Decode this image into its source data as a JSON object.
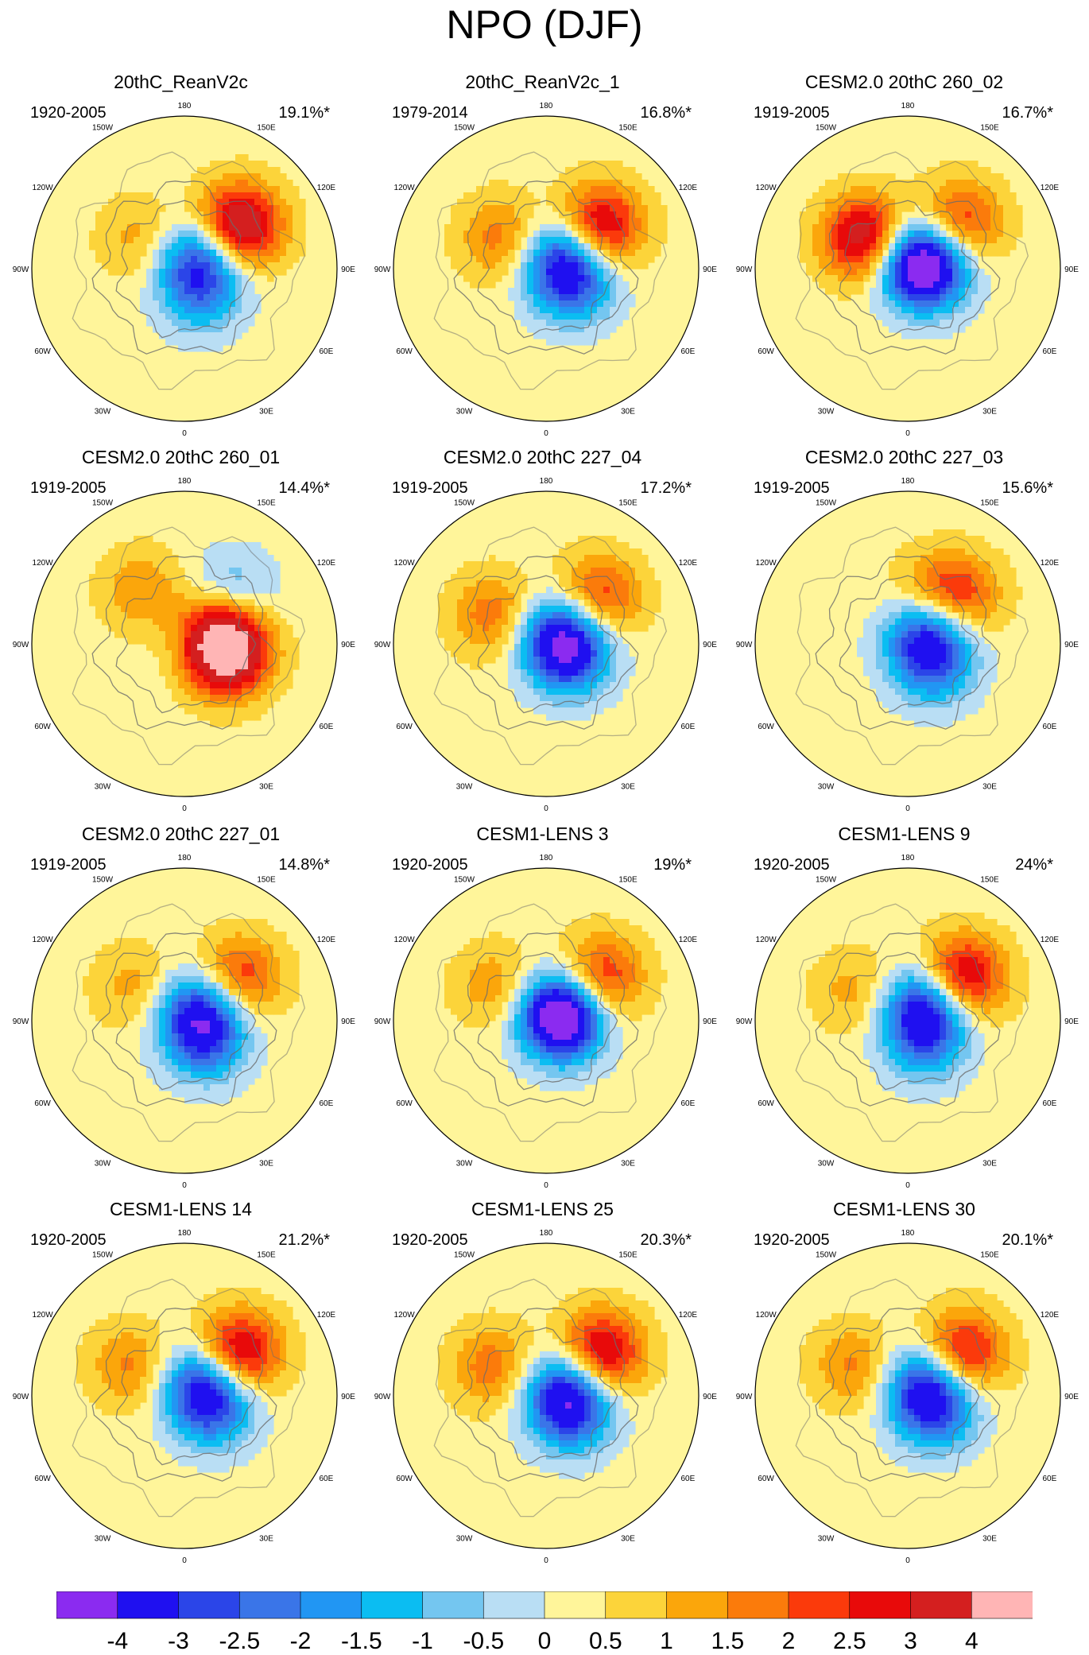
{
  "figure": {
    "title": "NPO (DJF)"
  },
  "lon_labels": [
    "180",
    "150E",
    "120E",
    "90E",
    "60E",
    "30E",
    "0",
    "30W",
    "60W",
    "90W",
    "120W",
    "150W"
  ],
  "panels": [
    {
      "title": "20thC_ReanV2c",
      "period": "1920-2005",
      "variance": "19.1%*",
      "pattern": {
        "pos": [
          [
            0.45,
            0.66,
            4.0
          ],
          [
            -0.35,
            -0.6,
            1.0
          ]
        ],
        "neg": [
          [
            0.12,
            0.55,
            3.0
          ],
          [
            0.2,
            -1.0,
            1.6
          ]
        ]
      }
    },
    {
      "title": "20thC_ReanV2c_1",
      "period": "1979-2014",
      "variance": "16.8%*",
      "pattern": {
        "pos": [
          [
            0.45,
            0.66,
            3.2
          ],
          [
            -0.35,
            -0.6,
            1.6
          ]
        ],
        "neg": [
          [
            0.12,
            0.55,
            3.0
          ],
          [
            0.22,
            -0.5,
            2.0
          ]
        ]
      }
    },
    {
      "title": "CESM2.0 20thC 260_02",
      "period": "1919-2005",
      "variance": "16.7%*",
      "pattern": {
        "pos": [
          [
            0.45,
            0.72,
            2.4
          ],
          [
            -0.35,
            -0.62,
            3.4
          ]
        ],
        "neg": [
          [
            0.1,
            0.4,
            3.6
          ],
          [
            0.12,
            0.0,
            2.4
          ]
        ]
      }
    },
    {
      "title": "CESM2.0 20thC 260_01",
      "period": "1919-2005",
      "variance": "14.4%*",
      "pattern": {
        "pos": [
          [
            0.28,
            -0.3,
            3.6
          ],
          [
            0.25,
            0.3,
            3.4
          ],
          [
            -0.45,
            -0.9,
            1.2
          ]
        ],
        "neg": [
          [
            0.45,
            0.8,
            1.6
          ],
          [
            0.1,
            -0.1,
            0.8
          ]
        ]
      }
    },
    {
      "title": "CESM2.0 20thC 227_04",
      "period": "1919-2005",
      "variance": "17.2%*",
      "pattern": {
        "pos": [
          [
            0.45,
            0.72,
            2.4
          ],
          [
            -0.4,
            -0.5,
            1.6
          ]
        ],
        "neg": [
          [
            0.12,
            0.45,
            3.4
          ],
          [
            0.18,
            -0.5,
            2.2
          ]
        ]
      }
    },
    {
      "title": "CESM2.0 20thC 227_03",
      "period": "1919-2005",
      "variance": "15.6%*",
      "pattern": {
        "pos": [
          [
            0.45,
            0.75,
            2.2
          ],
          [
            0.35,
            1.2,
            1.0
          ]
        ],
        "neg": [
          [
            0.15,
            0.5,
            3.2
          ],
          [
            0.22,
            -0.7,
            2.0
          ]
        ]
      }
    },
    {
      "title": "CESM2.0 20thC 227_01",
      "period": "1919-2005",
      "variance": "14.8%*",
      "pattern": {
        "pos": [
          [
            0.45,
            0.66,
            2.4
          ],
          [
            -0.4,
            -0.6,
            1.0
          ]
        ],
        "neg": [
          [
            0.12,
            0.5,
            3.4
          ],
          [
            0.2,
            -0.8,
            2.0
          ]
        ]
      }
    },
    {
      "title": "CESM1-LENS 3",
      "period": "1920-2005",
      "variance": "19%*",
      "pattern": {
        "pos": [
          [
            0.45,
            0.66,
            2.6
          ],
          [
            -0.4,
            -0.6,
            1.2
          ]
        ],
        "neg": [
          [
            0.12,
            0.45,
            3.4
          ],
          [
            0.1,
            0.0,
            2.6
          ]
        ]
      }
    },
    {
      "title": "CESM1-LENS 9",
      "period": "1920-2005",
      "variance": "24%*",
      "pattern": {
        "pos": [
          [
            0.45,
            0.66,
            3.4
          ],
          [
            -0.4,
            -0.5,
            1.0
          ]
        ],
        "neg": [
          [
            0.14,
            0.55,
            4.0
          ],
          [
            0.2,
            -1.0,
            1.4
          ]
        ]
      }
    },
    {
      "title": "CESM1-LENS 14",
      "period": "1920-2005",
      "variance": "21.2%*",
      "pattern": {
        "pos": [
          [
            0.45,
            0.66,
            3.4
          ],
          [
            -0.4,
            -0.5,
            1.4
          ]
        ],
        "neg": [
          [
            0.14,
            0.55,
            3.0
          ],
          [
            0.22,
            -0.4,
            2.0
          ]
        ]
      }
    },
    {
      "title": "CESM1-LENS 25",
      "period": "1920-2005",
      "variance": "20.3%*",
      "pattern": {
        "pos": [
          [
            0.45,
            0.66,
            3.4
          ],
          [
            -0.4,
            -0.5,
            1.6
          ]
        ],
        "neg": [
          [
            0.14,
            0.3,
            3.0
          ],
          [
            0.2,
            -0.6,
            2.2
          ]
        ]
      }
    },
    {
      "title": "CESM1-LENS 30",
      "period": "1920-2005",
      "variance": "20.1%*",
      "pattern": {
        "pos": [
          [
            0.45,
            0.66,
            3.0
          ],
          [
            -0.4,
            -0.5,
            1.4
          ]
        ],
        "neg": [
          [
            0.14,
            0.5,
            3.2
          ],
          [
            0.22,
            -0.5,
            2.0
          ]
        ]
      }
    }
  ],
  "colorbar": {
    "labels": [
      "-4",
      "-3",
      "-2.5",
      "-2",
      "-1.5",
      "-1",
      "-0.5",
      "0",
      "0.5",
      "1",
      "1.5",
      "2",
      "2.5",
      "3",
      "4"
    ],
    "levels": [
      -4,
      -3,
      -2.5,
      -2,
      -1.5,
      -1,
      -0.5,
      0,
      0.5,
      1,
      1.5,
      2,
      2.5,
      3,
      4
    ],
    "colors": [
      "#8b2bf0",
      "#1f10f0",
      "#2b45e8",
      "#3a75e8",
      "#2196f3",
      "#0bbdf2",
      "#74c6f0",
      "#b9def4",
      "#fff59a",
      "#fcd43a",
      "#fba60b",
      "#fb7b0b",
      "#fb3a0b",
      "#e80a0a",
      "#d41f1f",
      "#ffb5b5"
    ]
  },
  "colors": {
    "coast": "#6b6b6b",
    "grid": "#9a9a9a"
  }
}
